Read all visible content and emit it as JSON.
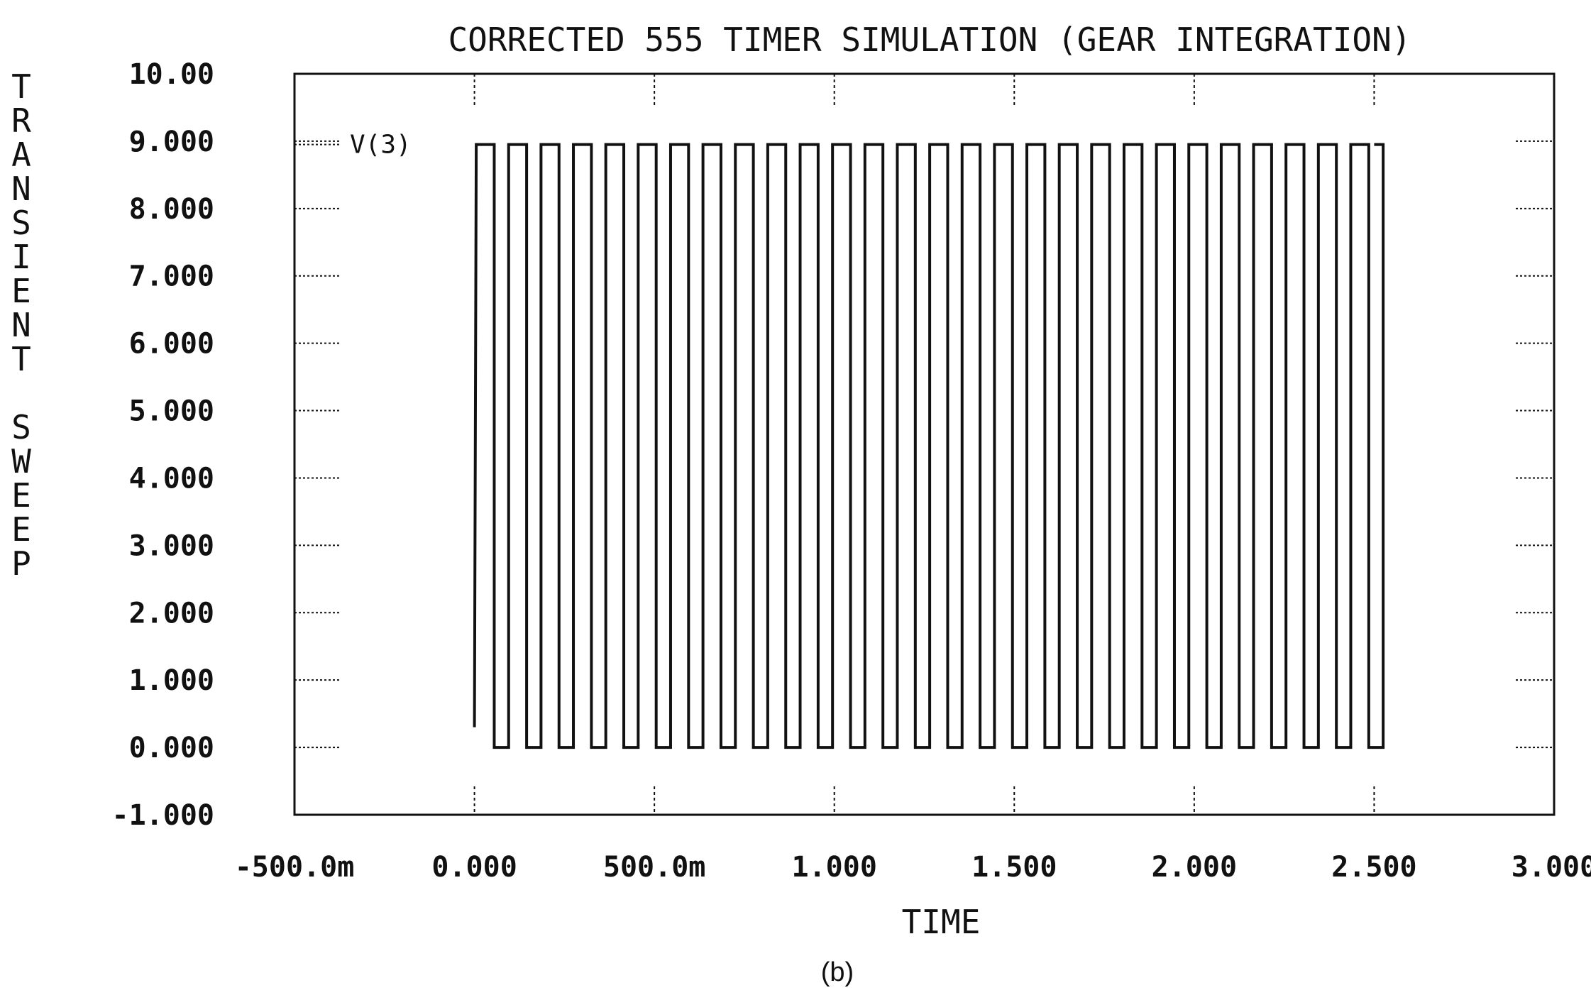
{
  "chart_data": {
    "type": "line",
    "title": "CORRECTED 555 TIMER SIMULATION (GEAR INTEGRATION)",
    "xlabel": "TIME",
    "ylabel": "TRANSIENT SWEEP",
    "caption": "(b)",
    "xlim": [
      -0.5,
      3.0
    ],
    "ylim": [
      -1.0,
      10.0
    ],
    "grid": "dotted tick marks",
    "x_tick_values": [
      -0.5,
      0.0,
      0.5,
      1.0,
      1.5,
      2.0,
      2.5,
      3.0
    ],
    "x_tick_labels": [
      "-500.0m",
      "0.000",
      "500.0m",
      "1.000",
      "1.500",
      "2.000",
      "2.500",
      "3.000"
    ],
    "y_tick_values": [
      -1,
      0,
      1,
      2,
      3,
      4,
      5,
      6,
      7,
      8,
      9,
      10
    ],
    "y_tick_labels": [
      "-1.000",
      "0.000",
      "1.000",
      "2.000",
      "3.000",
      "4.000",
      "5.000",
      "6.000",
      "7.000",
      "8.000",
      "9.000",
      "10.00"
    ],
    "series": [
      {
        "name": "V(3)",
        "color": "#111111",
        "waveform": {
          "kind": "square",
          "t_start": 0.0,
          "v_start": 0.3,
          "high": 8.95,
          "low": 0.0,
          "first_rise": 0.005,
          "period": 0.09,
          "high_time": 0.05,
          "cycles": 28,
          "t_end": 2.5
        }
      }
    ]
  }
}
